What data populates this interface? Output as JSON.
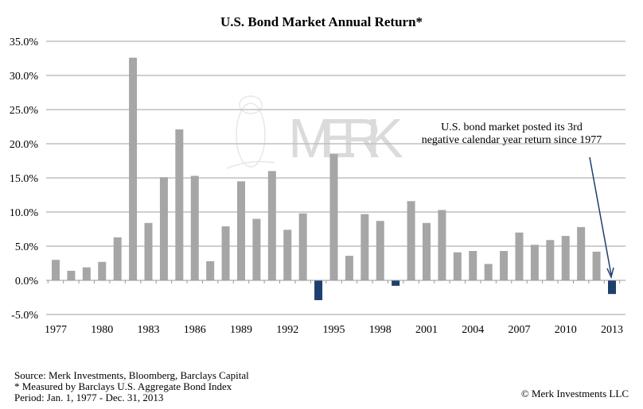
{
  "chart_data": {
    "type": "bar",
    "title": "U.S. Bond Market Annual Return*",
    "xlabel": "",
    "ylabel": "",
    "ylim": [
      -5,
      35
    ],
    "yticks": [
      "-5.0%",
      "0.0%",
      "5.0%",
      "10.0%",
      "15.0%",
      "20.0%",
      "25.0%",
      "30.0%",
      "35.0%"
    ],
    "ytick_values": [
      -5,
      0,
      5,
      10,
      15,
      20,
      25,
      30,
      35
    ],
    "xtick_labels": [
      "1977",
      "1980",
      "1983",
      "1986",
      "1989",
      "1992",
      "1995",
      "1998",
      "2001",
      "2004",
      "2007",
      "2010",
      "2013"
    ],
    "grid": true,
    "categories": [
      1977,
      1978,
      1979,
      1980,
      1981,
      1982,
      1983,
      1984,
      1985,
      1986,
      1987,
      1988,
      1989,
      1990,
      1991,
      1992,
      1993,
      1994,
      1995,
      1996,
      1997,
      1998,
      1999,
      2000,
      2001,
      2002,
      2003,
      2004,
      2005,
      2006,
      2007,
      2008,
      2009,
      2010,
      2011,
      2012,
      2013
    ],
    "values": [
      3.0,
      1.4,
      1.9,
      2.7,
      6.3,
      32.6,
      8.4,
      15.1,
      22.1,
      15.3,
      2.8,
      7.9,
      14.5,
      9.0,
      16.0,
      7.4,
      9.8,
      -2.9,
      18.5,
      3.6,
      9.7,
      8.7,
      -0.8,
      11.6,
      8.4,
      10.3,
      4.1,
      4.3,
      2.4,
      4.3,
      7.0,
      5.2,
      5.9,
      6.5,
      7.8,
      4.2,
      -2.0
    ],
    "colors": {
      "positive": "#a6a6a6",
      "negative": "#1f3f6e",
      "grid": "#bfbfbf",
      "arrow": "#1f3f6e"
    },
    "annotation": {
      "line1": "U.S. bond market posted its 3rd",
      "line2": "negative calendar year return since 1977",
      "points_to": 2013
    }
  },
  "watermark": {
    "text": "MERK",
    "icon": "owl-icon"
  },
  "footer": {
    "source": "Source: Merk Investments, Bloomberg, Barclays Capital",
    "note": "* Measured by Barclays U.S. Aggregate Bond Index",
    "period": "Period: Jan. 1, 1977 - Dec. 31, 2013",
    "copyright": "© Merk Investments LLC"
  }
}
